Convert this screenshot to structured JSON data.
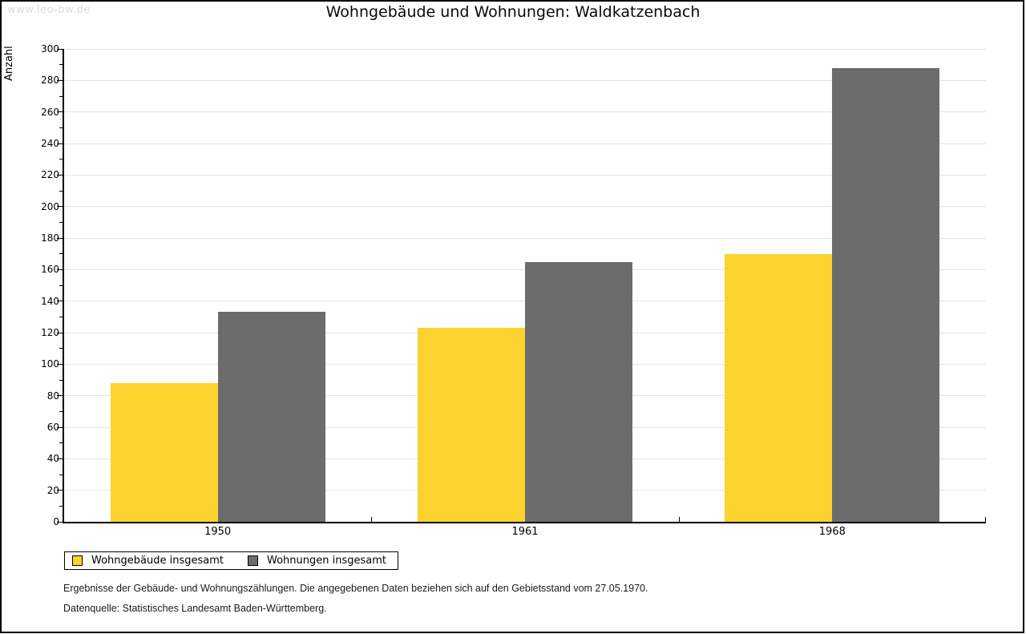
{
  "watermark": "www.leo-bw.de",
  "title": "Wohngebäude und Wohnungen: Waldkatzenbach",
  "chart_data": {
    "type": "bar",
    "title": "Wohngebäude und Wohnungen: Waldkatzenbach",
    "xlabel": "",
    "ylabel": "Anzahl",
    "categories": [
      "1950",
      "1961",
      "1968"
    ],
    "series": [
      {
        "name": "Wohngebäude insgesamt",
        "color": "#FCD32E",
        "values": [
          88,
          123,
          170
        ]
      },
      {
        "name": "Wohnungen insgesamt",
        "color": "#6C6C6C",
        "values": [
          133,
          165,
          288
        ]
      }
    ],
    "ylim": [
      0,
      300
    ],
    "ytick_step": 20,
    "yminor_step": 10,
    "grid": true,
    "legend_position": "bottom-left",
    "gridline_color": "#e4e4e4",
    "axis_color": "#000000"
  },
  "footer": {
    "line1": "Ergebnisse der Gebäude- und Wohnungszählungen. Die angegebenen Daten beziehen sich auf den Gebietsstand vom 27.05.1970.",
    "line2": "Datenquelle: Statistisches Landesamt Baden-Württemberg."
  }
}
